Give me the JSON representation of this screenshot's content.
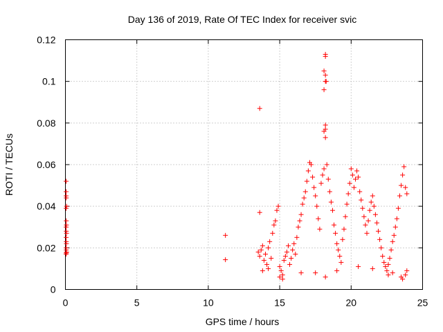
{
  "chart_data": {
    "type": "scatter",
    "title": "Day 136 of 2019, Rate Of TEC Index for receiver svic",
    "xlabel": "GPS time / hours",
    "ylabel": "ROTI / TECUs",
    "xlim": [
      0,
      25
    ],
    "ylim": [
      0,
      0.12
    ],
    "xticks": [
      0,
      5,
      10,
      15,
      20,
      25
    ],
    "yticks": [
      0,
      0.02,
      0.04,
      0.06,
      0.08,
      0.1,
      0.12
    ],
    "xtick_labels": [
      "0",
      "5",
      "10",
      "15",
      "20",
      "25"
    ],
    "ytick_labels": [
      "0",
      "0.02",
      "0.04",
      "0.06",
      "0.08",
      "0.1",
      "0.12"
    ],
    "grid": true,
    "marker": "+",
    "color": "#ff0000",
    "series": [
      {
        "name": "ROTI",
        "points": [
          [
            0.05,
            0.052
          ],
          [
            0.05,
            0.047
          ],
          [
            0.05,
            0.045
          ],
          [
            0.06,
            0.044
          ],
          [
            0.08,
            0.04
          ],
          [
            0.05,
            0.039
          ],
          [
            0.06,
            0.033
          ],
          [
            0.07,
            0.031
          ],
          [
            0.05,
            0.03
          ],
          [
            0.06,
            0.028
          ],
          [
            0.08,
            0.027
          ],
          [
            0.05,
            0.025
          ],
          [
            0.06,
            0.023
          ],
          [
            0.07,
            0.022
          ],
          [
            0.05,
            0.02
          ],
          [
            0.06,
            0.019
          ],
          [
            0.08,
            0.018
          ],
          [
            0.05,
            0.017
          ],
          [
            0.06,
            0.0175
          ],
          [
            11.2,
            0.026
          ],
          [
            11.2,
            0.0143
          ],
          [
            13.6,
            0.087
          ],
          [
            13.6,
            0.037
          ],
          [
            18.2,
            0.113
          ],
          [
            18.2,
            0.112
          ],
          [
            18.1,
            0.105
          ],
          [
            18.2,
            0.103
          ],
          [
            18.2,
            0.1
          ],
          [
            18.25,
            0.1
          ],
          [
            18.1,
            0.096
          ],
          [
            18.2,
            0.079
          ],
          [
            18.2,
            0.077
          ],
          [
            18.1,
            0.076
          ],
          [
            18.2,
            0.073
          ],
          [
            13.5,
            0.018
          ],
          [
            13.6,
            0.016
          ],
          [
            13.7,
            0.019
          ],
          [
            13.8,
            0.021
          ],
          [
            13.9,
            0.014
          ],
          [
            14.0,
            0.017
          ],
          [
            14.1,
            0.012
          ],
          [
            14.2,
            0.02
          ],
          [
            14.3,
            0.023
          ],
          [
            14.4,
            0.015
          ],
          [
            14.5,
            0.027
          ],
          [
            14.6,
            0.031
          ],
          [
            14.7,
            0.033
          ],
          [
            14.8,
            0.038
          ],
          [
            14.9,
            0.04
          ],
          [
            15.0,
            0.011
          ],
          [
            15.1,
            0.009
          ],
          [
            15.2,
            0.007
          ],
          [
            15.3,
            0.014
          ],
          [
            15.4,
            0.016
          ],
          [
            15.5,
            0.018
          ],
          [
            15.6,
            0.021
          ],
          [
            15.7,
            0.012
          ],
          [
            15.8,
            0.015
          ],
          [
            15.9,
            0.019
          ],
          [
            16.0,
            0.022
          ],
          [
            16.1,
            0.017
          ],
          [
            16.2,
            0.025
          ],
          [
            16.3,
            0.03
          ],
          [
            16.4,
            0.033
          ],
          [
            16.5,
            0.036
          ],
          [
            16.6,
            0.041
          ],
          [
            16.7,
            0.044
          ],
          [
            16.8,
            0.047
          ],
          [
            16.9,
            0.052
          ],
          [
            17.0,
            0.057
          ],
          [
            17.1,
            0.061
          ],
          [
            17.2,
            0.06
          ],
          [
            17.3,
            0.054
          ],
          [
            17.4,
            0.049
          ],
          [
            17.5,
            0.045
          ],
          [
            17.6,
            0.04
          ],
          [
            17.7,
            0.034
          ],
          [
            17.8,
            0.029
          ],
          [
            17.9,
            0.051
          ],
          [
            18.0,
            0.055
          ],
          [
            18.1,
            0.058
          ],
          [
            18.3,
            0.06
          ],
          [
            18.4,
            0.053
          ],
          [
            18.5,
            0.047
          ],
          [
            18.6,
            0.042
          ],
          [
            18.7,
            0.038
          ],
          [
            18.8,
            0.031
          ],
          [
            18.9,
            0.027
          ],
          [
            19.0,
            0.022
          ],
          [
            19.1,
            0.019
          ],
          [
            19.2,
            0.016
          ],
          [
            19.3,
            0.013
          ],
          [
            19.4,
            0.024
          ],
          [
            19.5,
            0.029
          ],
          [
            19.6,
            0.035
          ],
          [
            19.7,
            0.041
          ],
          [
            19.8,
            0.046
          ],
          [
            19.9,
            0.051
          ],
          [
            20.0,
            0.058
          ],
          [
            20.1,
            0.055
          ],
          [
            20.2,
            0.049
          ],
          [
            20.3,
            0.053
          ],
          [
            20.4,
            0.057
          ],
          [
            20.5,
            0.054
          ],
          [
            20.6,
            0.047
          ],
          [
            20.7,
            0.043
          ],
          [
            20.8,
            0.039
          ],
          [
            20.9,
            0.035
          ],
          [
            21.0,
            0.031
          ],
          [
            21.1,
            0.027
          ],
          [
            21.2,
            0.033
          ],
          [
            21.3,
            0.038
          ],
          [
            21.4,
            0.042
          ],
          [
            21.5,
            0.045
          ],
          [
            21.6,
            0.04
          ],
          [
            21.7,
            0.036
          ],
          [
            21.8,
            0.032
          ],
          [
            21.9,
            0.028
          ],
          [
            22.0,
            0.024
          ],
          [
            22.1,
            0.02
          ],
          [
            22.2,
            0.016
          ],
          [
            22.3,
            0.013
          ],
          [
            22.4,
            0.011
          ],
          [
            22.5,
            0.009
          ],
          [
            22.6,
            0.012
          ],
          [
            22.7,
            0.015
          ],
          [
            22.8,
            0.019
          ],
          [
            22.9,
            0.023
          ],
          [
            23.0,
            0.026
          ],
          [
            23.1,
            0.03
          ],
          [
            23.2,
            0.034
          ],
          [
            23.3,
            0.039
          ],
          [
            23.4,
            0.045
          ],
          [
            23.5,
            0.05
          ],
          [
            23.6,
            0.055
          ],
          [
            23.7,
            0.059
          ],
          [
            23.8,
            0.049
          ],
          [
            23.9,
            0.046
          ],
          [
            23.5,
            0.006
          ],
          [
            23.6,
            0.005
          ],
          [
            23.8,
            0.007
          ],
          [
            23.9,
            0.009
          ],
          [
            15.0,
            0.006
          ],
          [
            15.2,
            0.005
          ],
          [
            16.5,
            0.008
          ],
          [
            17.5,
            0.008
          ],
          [
            18.2,
            0.006
          ],
          [
            19.0,
            0.009
          ],
          [
            20.5,
            0.011
          ],
          [
            21.5,
            0.01
          ],
          [
            22.6,
            0.007
          ],
          [
            22.9,
            0.008
          ],
          [
            13.8,
            0.009
          ],
          [
            14.2,
            0.01
          ]
        ]
      }
    ]
  }
}
